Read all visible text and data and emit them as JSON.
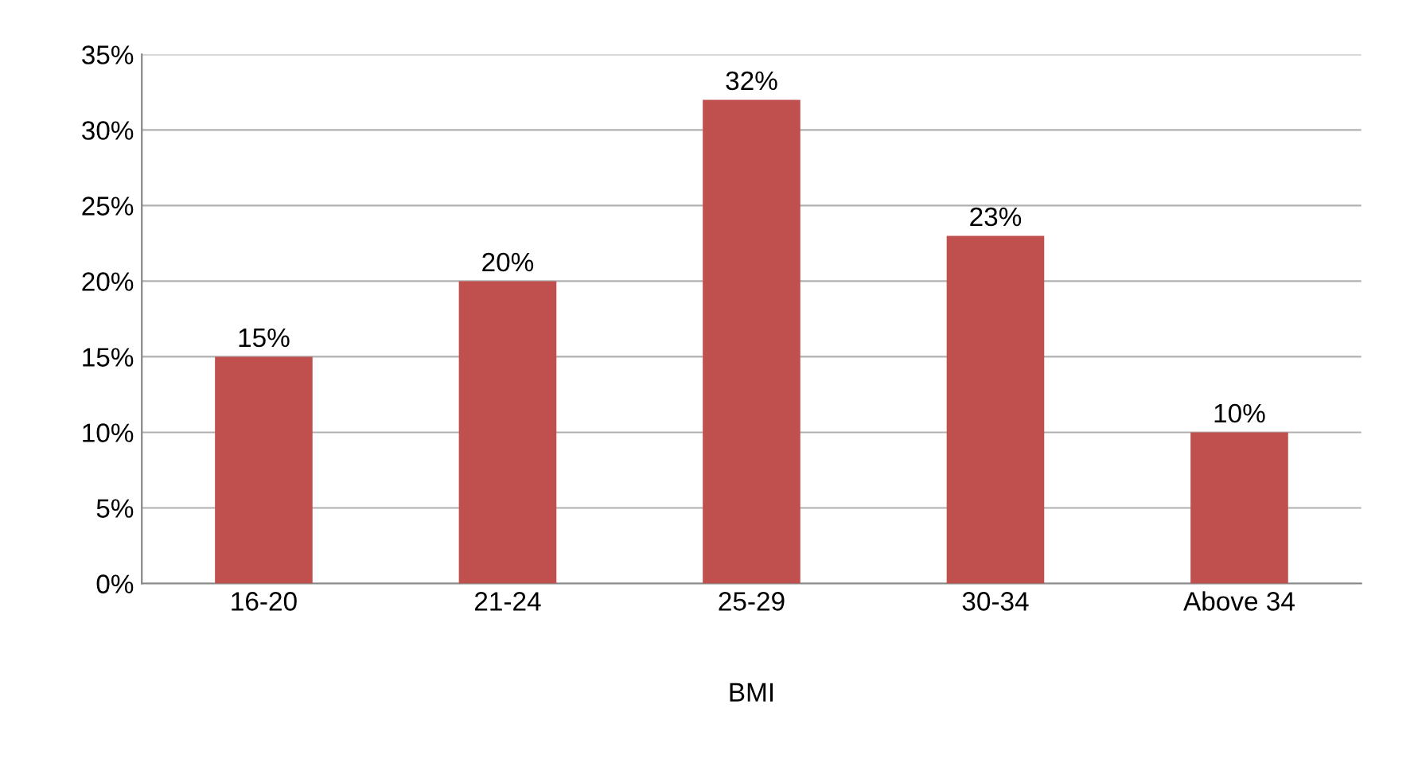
{
  "chart_data": {
    "type": "bar",
    "xlabel": "BMI",
    "categories": [
      "16-20",
      "21-24",
      "25-29",
      "30-34",
      "Above 34"
    ],
    "values": [
      15,
      20,
      32,
      23,
      10
    ],
    "value_labels": [
      "15%",
      "20%",
      "32%",
      "23%",
      "10%"
    ],
    "color": "#c0504d",
    "ylim": [
      0,
      35
    ],
    "yticks": [
      {
        "value": 0,
        "label": "0%"
      },
      {
        "value": 5,
        "label": "5%"
      },
      {
        "value": 10,
        "label": "10%"
      },
      {
        "value": 15,
        "label": "15%"
      },
      {
        "value": 20,
        "label": "20%"
      },
      {
        "value": 25,
        "label": "25%"
      },
      {
        "value": 30,
        "label": "30%"
      },
      {
        "value": 35,
        "label": "35%"
      }
    ],
    "grid": "y",
    "legend": false
  }
}
